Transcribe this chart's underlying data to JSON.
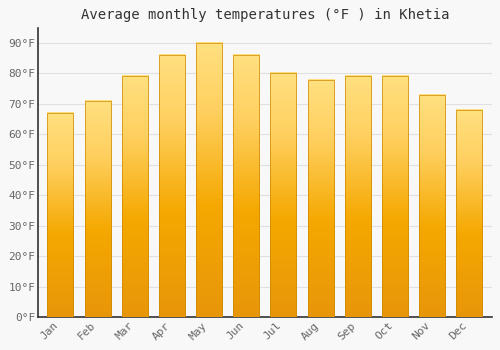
{
  "title": "Average monthly temperatures (°F ) in Khetia",
  "months": [
    "Jan",
    "Feb",
    "Mar",
    "Apr",
    "May",
    "Jun",
    "Jul",
    "Aug",
    "Sep",
    "Oct",
    "Nov",
    "Dec"
  ],
  "values": [
    67,
    71,
    79,
    86,
    90,
    86,
    80,
    78,
    79,
    79,
    73,
    68
  ],
  "bar_color_top": "#FFD966",
  "bar_color_bottom": "#E8960A",
  "bar_color_mid": "#FFC125",
  "background_color": "#F8F8F8",
  "plot_bg_color": "#F8F8F8",
  "grid_color": "#E0E0E0",
  "ylim": [
    0,
    95
  ],
  "yticks": [
    0,
    10,
    20,
    30,
    40,
    50,
    60,
    70,
    80,
    90
  ],
  "ytick_labels": [
    "0°F",
    "10°F",
    "20°F",
    "30°F",
    "40°F",
    "50°F",
    "60°F",
    "70°F",
    "80°F",
    "90°F"
  ],
  "title_fontsize": 10,
  "tick_fontsize": 8,
  "tick_color": "#666666",
  "title_color": "#333333",
  "font_family": "monospace",
  "bar_width": 0.7,
  "spine_color": "#333333"
}
